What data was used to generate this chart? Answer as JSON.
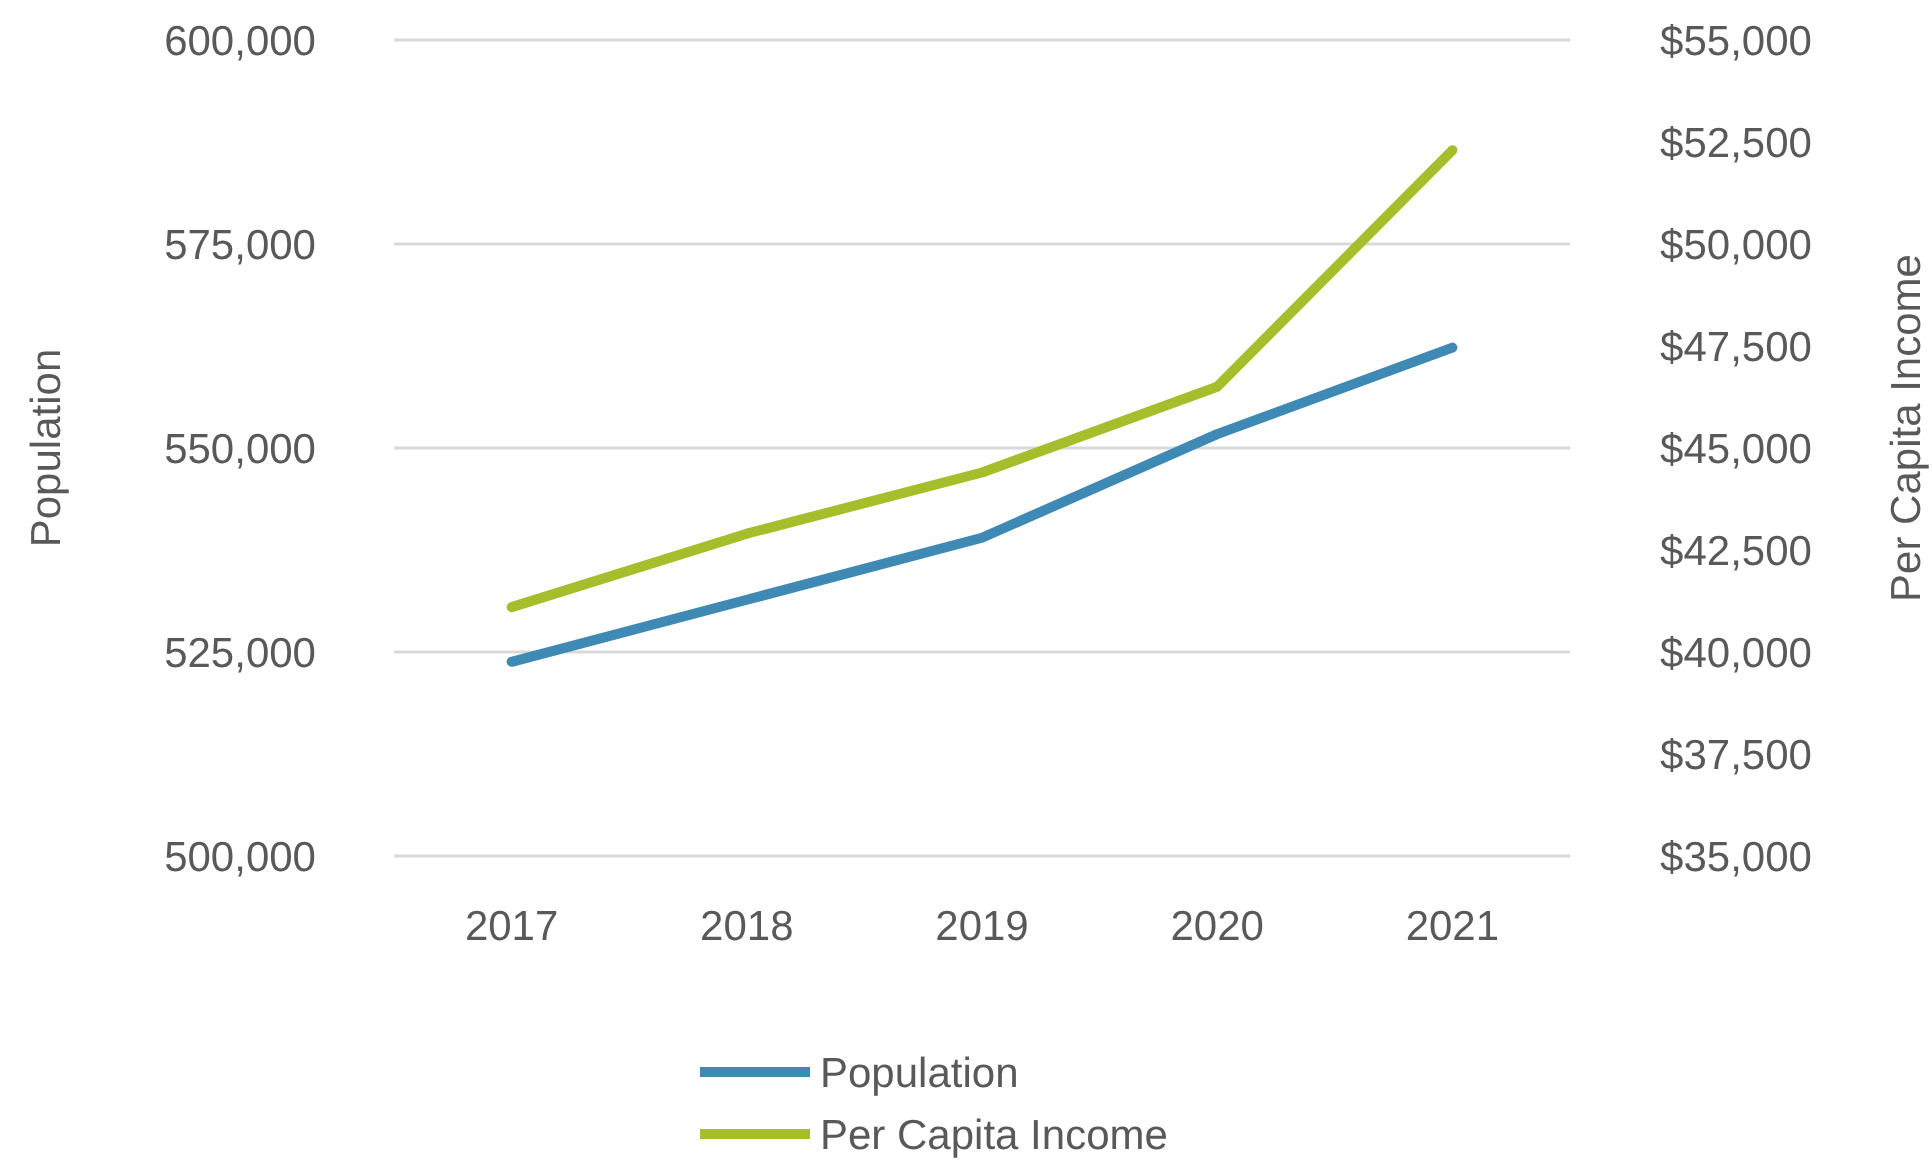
{
  "chart_data": {
    "type": "line",
    "categories": [
      "2017",
      "2018",
      "2019",
      "2020",
      "2021"
    ],
    "ylabel": "Population",
    "y2label": "Per Capita Income",
    "series": [
      {
        "name": "Population",
        "color": "#3e8ab5",
        "values": [
          523800,
          531400,
          539000,
          551700,
          562300
        ]
      },
      {
        "name": "Per Capita Income",
        "color": "#a4bf2b",
        "axis": "y2",
        "values": [
          41100,
          42900,
          44400,
          46500,
          52300
        ]
      }
    ],
    "ylim": [
      500000,
      600000
    ],
    "yticks": [
      {
        "value": 500000,
        "label": "500,000"
      },
      {
        "value": 525000,
        "label": "525,000"
      },
      {
        "value": 550000,
        "label": "550,000"
      },
      {
        "value": 575000,
        "label": "575,000"
      },
      {
        "value": 600000,
        "label": "600,000"
      }
    ],
    "y2lim": [
      35000,
      55000
    ],
    "y2ticks": [
      {
        "value": 35000,
        "label": "$35,000"
      },
      {
        "value": 37500,
        "label": "$37,500"
      },
      {
        "value": 40000,
        "label": "$40,000"
      },
      {
        "value": 42500,
        "label": "$42,500"
      },
      {
        "value": 45000,
        "label": "$45,000"
      },
      {
        "value": 47500,
        "label": "$47,500"
      },
      {
        "value": 50000,
        "label": "$50,000"
      },
      {
        "value": 52500,
        "label": "$52,500"
      },
      {
        "value": 55000,
        "label": "$55,000"
      }
    ],
    "grid": "y",
    "legend": "bottom",
    "marker": "none",
    "line_style": "solid"
  }
}
